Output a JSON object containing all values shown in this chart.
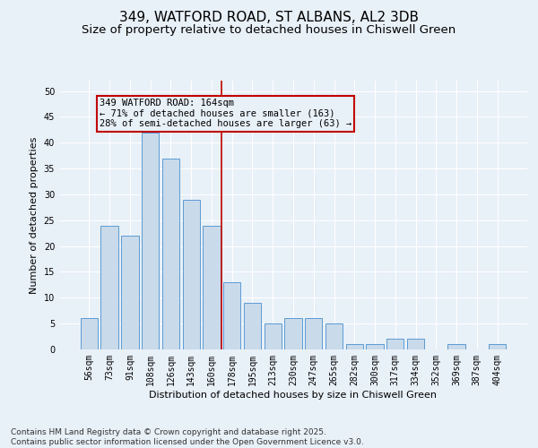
{
  "title1": "349, WATFORD ROAD, ST ALBANS, AL2 3DB",
  "title2": "Size of property relative to detached houses in Chiswell Green",
  "xlabel": "Distribution of detached houses by size in Chiswell Green",
  "ylabel": "Number of detached properties",
  "categories": [
    "56sqm",
    "73sqm",
    "91sqm",
    "108sqm",
    "126sqm",
    "143sqm",
    "160sqm",
    "178sqm",
    "195sqm",
    "213sqm",
    "230sqm",
    "247sqm",
    "265sqm",
    "282sqm",
    "300sqm",
    "317sqm",
    "334sqm",
    "352sqm",
    "369sqm",
    "387sqm",
    "404sqm"
  ],
  "values": [
    6,
    24,
    22,
    42,
    37,
    29,
    24,
    13,
    9,
    5,
    6,
    6,
    5,
    1,
    1,
    2,
    2,
    0,
    1,
    0,
    1
  ],
  "bar_color": "#c9daea",
  "bar_edge_color": "#5b9bd5",
  "vline_color": "#c00000",
  "annotation_text": "349 WATFORD ROAD: 164sqm\n← 71% of detached houses are smaller (163)\n28% of semi-detached houses are larger (63) →",
  "annotation_box_color": "#c00000",
  "ylim": [
    0,
    52
  ],
  "yticks": [
    0,
    5,
    10,
    15,
    20,
    25,
    30,
    35,
    40,
    45,
    50
  ],
  "background_color": "#e8f0f8",
  "grid_color": "#ffffff",
  "footer1": "Contains HM Land Registry data © Crown copyright and database right 2025.",
  "footer2": "Contains public sector information licensed under the Open Government Licence v3.0.",
  "title_fontsize": 11,
  "subtitle_fontsize": 9.5,
  "tick_fontsize": 7,
  "ylabel_fontsize": 8,
  "xlabel_fontsize": 8,
  "footer_fontsize": 6.5,
  "annot_fontsize": 7.5
}
